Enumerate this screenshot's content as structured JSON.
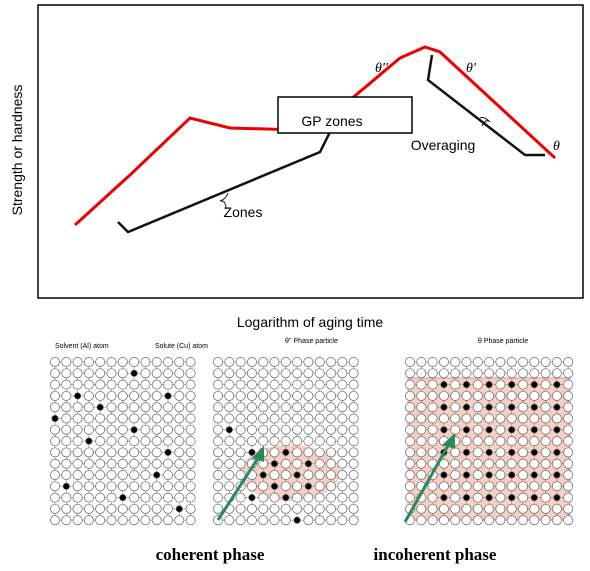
{
  "plot": {
    "y_label": "Strength or hardness",
    "x_label": "Logarithm of aging time",
    "box_label": "GP zones",
    "zones": "Zones",
    "overaging": "Overaging",
    "theta_dd": "θ''",
    "theta_d": "θ'",
    "theta": "θ"
  },
  "lattice": {
    "solvent": "Solvent (Al) atom",
    "solute": "Solute (Cu) atom",
    "particle_dd": "θ'' Phase particle",
    "particle": "θ Phase particle"
  },
  "captions": {
    "coherent": "coherent phase",
    "incoherent": "incoherent phase"
  }
}
